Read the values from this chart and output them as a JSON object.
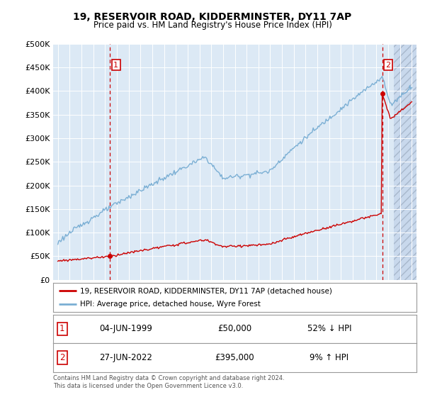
{
  "title": "19, RESERVOIR ROAD, KIDDERMINSTER, DY11 7AP",
  "subtitle": "Price paid vs. HM Land Registry's House Price Index (HPI)",
  "background_color": "#dce9f5",
  "red_color": "#cc0000",
  "blue_color": "#7bafd4",
  "annotation1_date": "04-JUN-1999",
  "annotation1_price": "£50,000",
  "annotation1_hpi": "52% ↓ HPI",
  "annotation2_date": "27-JUN-2022",
  "annotation2_price": "£395,000",
  "annotation2_hpi": "9% ↑ HPI",
  "legend_line1": "19, RESERVOIR ROAD, KIDDERMINSTER, DY11 7AP (detached house)",
  "legend_line2": "HPI: Average price, detached house, Wyre Forest",
  "footer": "Contains HM Land Registry data © Crown copyright and database right 2024.\nThis data is licensed under the Open Government Licence v3.0.",
  "ylim": [
    0,
    500000
  ],
  "yticks": [
    0,
    50000,
    100000,
    150000,
    200000,
    250000,
    300000,
    350000,
    400000,
    450000,
    500000
  ],
  "sale1_x": 1999.42,
  "sale1_y": 50000,
  "sale2_x": 2022.49,
  "sale2_y": 395000,
  "vline1_x": 1999.42,
  "vline2_x": 2022.49,
  "xmin": 1995,
  "xmax": 2025
}
